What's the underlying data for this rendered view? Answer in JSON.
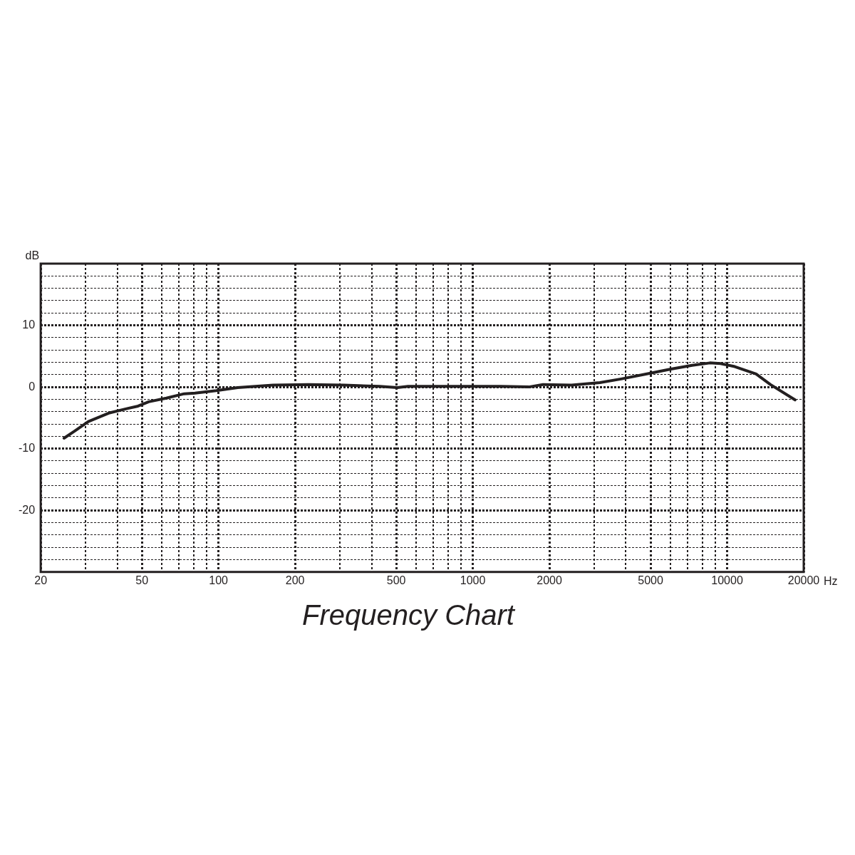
{
  "chart_data": {
    "type": "line",
    "title": "Frequency Chart",
    "xlabel": "Hz",
    "ylabel": "dB",
    "log": "x",
    "x": [
      24.7,
      27.1,
      30.8,
      37.3,
      43.8,
      48.3,
      53.2,
      62.4,
      73.3,
      80.8,
      98,
      119,
      164,
      226,
      312,
      430,
      505,
      556,
      931,
      1282,
      1660,
      1888,
      2443,
      3158,
      3829,
      4955,
      6011,
      7280,
      8552,
      9420,
      10716,
      13000,
      14788,
      18500
    ],
    "series": [
      {
        "color": "#231f20",
        "values": [
          -8.3,
          -7.2,
          -5.6,
          -4.2,
          -3.5,
          -3.1,
          -2.4,
          -1.8,
          -1.1,
          -1.0,
          -0.6,
          -0.1,
          0.3,
          0.4,
          0.3,
          0.1,
          -0.1,
          0.1,
          0.1,
          0.1,
          0,
          0.4,
          0.3,
          0.7,
          1.3,
          2.2,
          2.9,
          3.5,
          3.9,
          3.8,
          3.3,
          2.1,
          0.4,
          -2.1
        ]
      }
    ],
    "xlim": [
      20,
      20000
    ],
    "xticks": [
      20,
      {
        "value": 30,
        "label": null
      },
      {
        "value": 40,
        "label": null
      },
      50,
      {
        "value": 60,
        "label": null
      },
      {
        "value": 70,
        "label": null
      },
      {
        "value": 80,
        "label": null
      },
      {
        "value": 90,
        "label": null
      },
      100,
      200,
      {
        "value": 300,
        "label": null
      },
      {
        "value": 400,
        "label": null
      },
      500,
      {
        "value": 600,
        "label": null
      },
      {
        "value": 700,
        "label": null
      },
      {
        "value": 800,
        "label": null
      },
      {
        "value": 900,
        "label": null
      },
      1000,
      2000,
      {
        "value": 3000,
        "label": null
      },
      {
        "value": 4000,
        "label": null
      },
      5000,
      {
        "value": 6000,
        "label": null
      },
      {
        "value": 7000,
        "label": null
      },
      {
        "value": 8000,
        "label": null
      },
      {
        "value": 9000,
        "label": null
      },
      10000,
      20000
    ],
    "ylim": [
      -30,
      20
    ],
    "yticks": [
      {
        "value": -28,
        "label": null
      },
      {
        "value": -26,
        "label": null
      },
      {
        "value": -24,
        "label": null
      },
      {
        "value": -22,
        "label": null
      },
      -20,
      {
        "value": -18,
        "label": null
      },
      {
        "value": -16,
        "label": null
      },
      {
        "value": -14,
        "label": null
      },
      {
        "value": -12,
        "label": null
      },
      -10,
      {
        "value": -8,
        "label": null
      },
      {
        "value": -6,
        "label": null
      },
      {
        "value": -4,
        "label": null
      },
      {
        "value": -2,
        "label": null
      },
      0,
      {
        "value": 2,
        "label": null
      },
      {
        "value": 4,
        "label": null
      },
      {
        "value": 6,
        "label": null
      },
      {
        "value": 8,
        "label": null
      },
      10,
      {
        "value": 12,
        "label": null
      },
      {
        "value": 14,
        "label": null
      },
      {
        "value": 16,
        "label": null
      },
      {
        "value": 18,
        "label": null
      }
    ],
    "grid": true,
    "legend": false,
    "marker": "none",
    "line_style": "solid"
  }
}
